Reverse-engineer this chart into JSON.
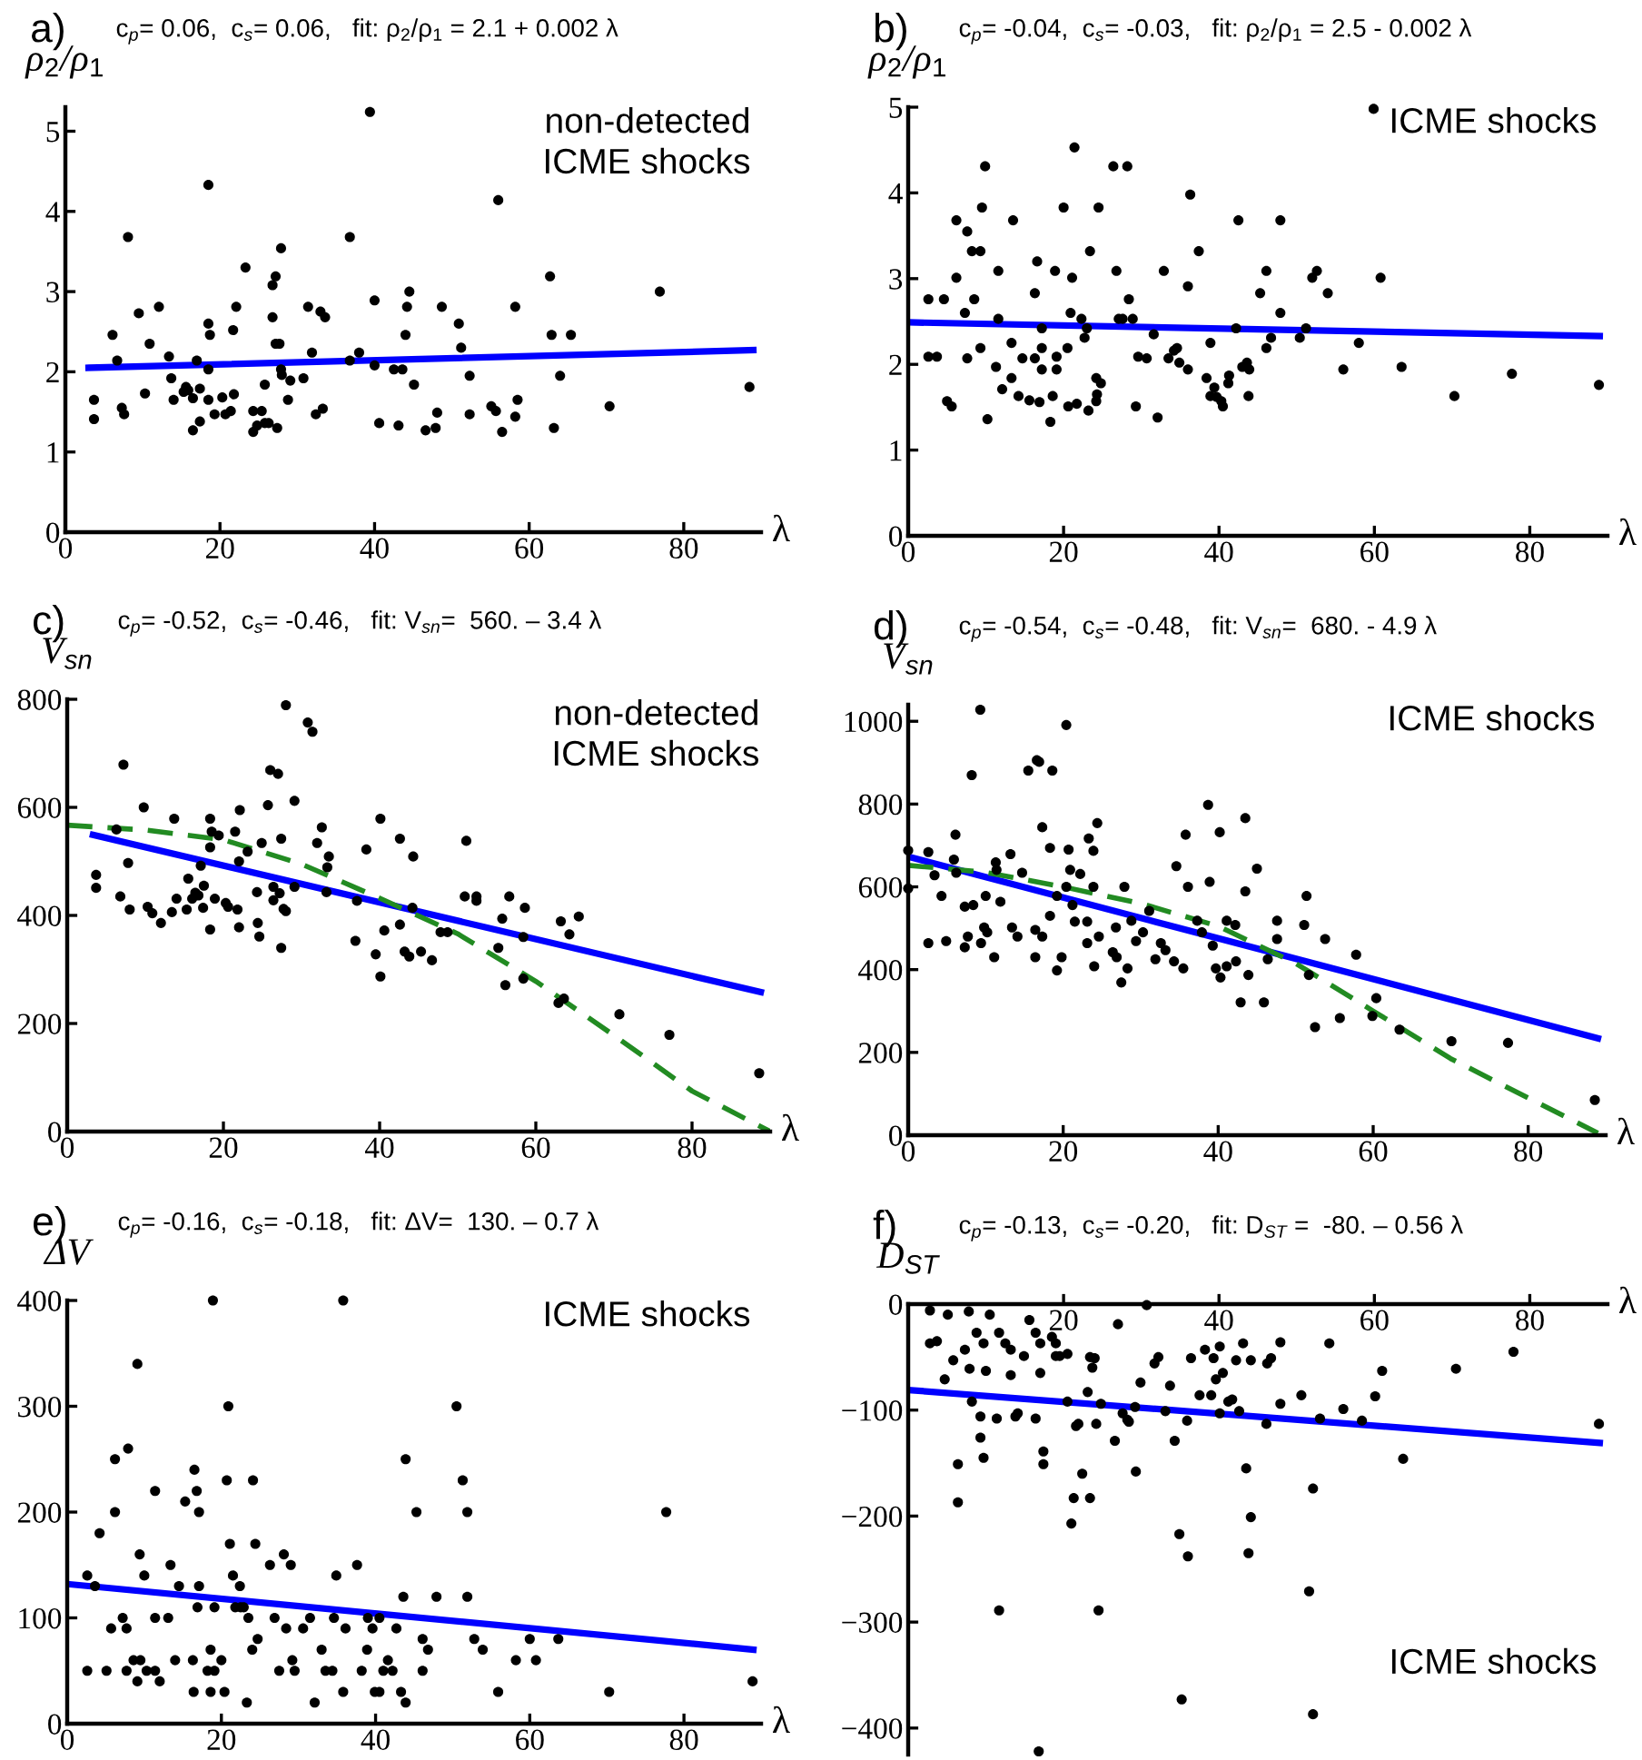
{
  "chart_data": [
    {
      "type": "scatter",
      "title": "a)",
      "subtitle": "c$_{p}$= 0.06,  c$_{s}$= 0.06,   fit: ρ$_{2}$/ρ$_{1}$ = 2.1 + 0.002 λ",
      "xlabel": "λ",
      "ylabel": "ρ$_{2}$/ρ$_{1}$",
      "xlim": [
        0,
        90
      ],
      "ylim": [
        0,
        5.3
      ],
      "xticks": [
        0,
        20,
        40,
        60,
        80
      ],
      "yticks": [
        0,
        1,
        2,
        3,
        4,
        5
      ],
      "annotations": [
        "non-detected\nICME shocks"
      ],
      "series": [
        {
          "color": "#000000",
          "marker": "circle",
          "x": [
            3.7,
            3.7,
            6.1,
            6.7,
            8.1,
            7.3,
            7.6,
            9.5,
            10.3,
            10.9,
            12.1,
            13.4,
            13.7,
            14,
            15.3,
            15.6,
            15.9,
            16.5,
            17,
            16.5,
            17.4,
            17.4,
            18.5,
            18.5,
            18.7,
            18.5,
            18.5,
            19.3,
            20.3,
            20.7,
            21.4,
            21.7,
            22.1,
            21.8,
            23.3,
            24.3,
            24.3,
            24.8,
            25.4,
            25.8,
            25.8,
            26.3,
            26.8,
            27.2,
            26.8,
            27.2,
            27.7,
            27.4,
            27.9,
            27.9,
            28,
            28.8,
            29.1,
            30.8,
            31.4,
            31.9,
            32.4,
            33,
            33.6,
            33.3,
            36.8,
            36.8,
            38,
            39.4,
            40,
            40,
            40.6,
            42.5,
            43.6,
            43.1,
            44,
            44.2,
            44.5,
            45.1,
            46.6,
            47.9,
            48.1,
            48.7,
            50.9,
            51.2,
            52.3,
            52.3,
            55.1,
            55.7,
            56,
            56.5,
            58.2,
            58.2,
            58.5,
            62.7,
            62.9,
            63.2,
            64,
            65.4,
            70.4,
            76.9,
            88.5
          ],
          "values": [
            1.65,
            1.41,
            2.46,
            2.14,
            3.68,
            1.55,
            1.47,
            2.73,
            1.73,
            2.35,
            2.81,
            2.19,
            1.92,
            1.65,
            1.75,
            1.81,
            1.77,
            1.67,
            2.14,
            1.27,
            1.38,
            1.79,
            4.33,
            2.6,
            2.46,
            2.03,
            1.65,
            1.47,
            1.68,
            1.47,
            1.51,
            2.52,
            2.81,
            1.72,
            3.3,
            1.51,
            1.25,
            1.33,
            1.51,
            1.84,
            1.36,
            1.36,
            3.08,
            3.19,
            2.68,
            2.35,
            2.35,
            1.3,
            3.54,
            2.03,
            1.96,
            1.65,
            1.89,
            1.92,
            2.81,
            2.24,
            1.47,
            2.75,
            2.68,
            1.54,
            3.68,
            2.14,
            2.24,
            5.24,
            2.89,
            2.08,
            1.36,
            2.03,
            2.03,
            1.33,
            2.46,
            2.81,
            3.0,
            1.84,
            1.27,
            1.3,
            1.49,
            2.81,
            2.6,
            2.3,
            1.95,
            1.47,
            1.57,
            1.51,
            4.14,
            1.25,
            2.81,
            1.44,
            1.65,
            3.19,
            2.46,
            1.3,
            1.95,
            2.46,
            1.57,
            3.0,
            1.81
          ]
        },
        {
          "type": "line",
          "color": "#0000ff",
          "x": [
            3,
            89
          ],
          "values": [
            2.05,
            2.27
          ]
        }
      ]
    },
    {
      "type": "scatter",
      "title": "b)",
      "subtitle": "c$_{p}$= -0.04,  c$_{s}$= -0.03,   fit: ρ$_{2}$/ρ$_{1}$ = 2.5 - 0.002 λ",
      "xlabel": "λ",
      "ylabel": "ρ$_{2}$/ρ$_{1}$",
      "xlim": [
        0,
        90
      ],
      "ylim": [
        0,
        5
      ],
      "xticks": [
        0,
        20,
        40,
        60,
        80
      ],
      "yticks": [
        0,
        1,
        2,
        3,
        4,
        5
      ],
      "annotations": [
        "ICME shocks"
      ],
      "series": [
        {
          "color": "#000000",
          "marker": "circle",
          "x": [
            2.6,
            2.6,
            3.7,
            4.6,
            5,
            5.6,
            6.2,
            6.2,
            7.3,
            7.6,
            7.6,
            8.2,
            8.5,
            9.3,
            9.5,
            9.3,
            9.9,
            10.2,
            11.3,
            11.6,
            11.6,
            12.1,
            13.3,
            13.3,
            13.5,
            14.2,
            14.7,
            15.6,
            16.3,
            16.6,
            16.3,
            16.9,
            17.2,
            17.2,
            17.2,
            18.3,
            18.6,
            18.9,
            19.1,
            19.1,
            20,
            20.5,
            20.6,
            20.9,
            21.1,
            21.4,
            21.7,
            22.3,
            22.7,
            23,
            23.2,
            23.4,
            24.2,
            24.2,
            24.3,
            24.5,
            24.8,
            26.4,
            26.8,
            27.1,
            27.6,
            28.2,
            28.4,
            28.9,
            29.3,
            29.6,
            30.7,
            31.6,
            32.1,
            32.9,
            33.5,
            34.2,
            34.6,
            34.9,
            36,
            36,
            36.3,
            37.4,
            38.4,
            38.9,
            38.9,
            39.4,
            39.7,
            40.3,
            40.5,
            41.2,
            41.3,
            42.2,
            42.5,
            43,
            43.6,
            43.8,
            43.9,
            45.3,
            46.1,
            46.1,
            46.7,
            47.9,
            47.9,
            50.4,
            51.2,
            52,
            52.6,
            54,
            56,
            58,
            59.9,
            60.8,
            63.5,
            70.3,
            77.7,
            88.9
          ],
          "values": [
            2.76,
            2.09,
            2.09,
            2.76,
            1.57,
            1.51,
            3.68,
            3.01,
            2.6,
            3.55,
            2.07,
            3.32,
            2.76,
            3.32,
            3.83,
            2.19,
            4.31,
            1.36,
            1.97,
            3.09,
            2.53,
            1.71,
            2.25,
            1.84,
            3.68,
            1.63,
            2.07,
            1.58,
            2.83,
            3.2,
            2.07,
            1.56,
            2.19,
            2.42,
            1.94,
            1.33,
            1.63,
            3.09,
            2.09,
            1.94,
            3.83,
            2.19,
            1.51,
            2.6,
            3.01,
            4.53,
            1.54,
            2.53,
            2.31,
            2.42,
            1.46,
            3.32,
            1.84,
            1.57,
            1.65,
            3.83,
            1.78,
            4.31,
            3.09,
            2.53,
            2.53,
            4.31,
            2.76,
            2.53,
            1.51,
            2.09,
            2.07,
            2.35,
            1.38,
            3.09,
            2.07,
            2.16,
            2.19,
            2.02,
            1.94,
            2.91,
            3.98,
            3.32,
            1.84,
            2.25,
            1.63,
            1.73,
            1.62,
            1.57,
            1.51,
            1.78,
            1.87,
            2.42,
            3.68,
            1.97,
            2.02,
            1.63,
            1.94,
            2.83,
            2.19,
            3.09,
            2.31,
            2.6,
            3.68,
            2.31,
            2.42,
            3.01,
            3.09,
            2.83,
            1.94,
            2.25,
            4.98,
            3.01,
            1.97,
            1.63,
            1.89,
            1.76
          ]
        },
        {
          "type": "line",
          "color": "#0000ff",
          "x": [
            0,
            89
          ],
          "values": [
            2.49,
            2.33
          ]
        }
      ]
    },
    {
      "type": "scatter",
      "title": "c)",
      "subtitle": "c$_{p}$= -0.52,  c$_{s}$= -0.46,   fit: V$_{sn}$=  560. – 3.4 λ",
      "xlabel": "λ",
      "ylabel": "V$_{sn}$",
      "xlim": [
        0,
        90
      ],
      "ylim": [
        0,
        800
      ],
      "xticks": [
        0,
        20,
        40,
        60,
        80
      ],
      "yticks": [
        0,
        200,
        400,
        600,
        800
      ],
      "annotations": [
        "non-detected\nICME shocks"
      ],
      "series": [
        {
          "color": "#000000",
          "marker": "circle",
          "x": [
            3.7,
            3.7,
            6.3,
            7.2,
            6.8,
            7.8,
            8,
            9.8,
            10.3,
            10.9,
            12,
            13.7,
            13.4,
            14,
            15.3,
            15.5,
            16,
            16.4,
            16.8,
            17.1,
            17.5,
            17.4,
            18.3,
            18.3,
            18.3,
            18.5,
            18.9,
            19.4,
            20.3,
            20.6,
            21.5,
            21.8,
            22,
            22.1,
            22,
            23.1,
            24.3,
            24.4,
            24.6,
            24.9,
            25.7,
            26,
            26.4,
            27,
            26.4,
            27.2,
            27.4,
            27.4,
            27.7,
            28,
            28,
            29.1,
            29.1,
            30.8,
            31.4,
            32,
            32.6,
            33.2,
            33.3,
            33.5,
            36.9,
            38.3,
            37.1,
            39.5,
            40.1,
            40.1,
            40.6,
            42.6,
            42.6,
            43.2,
            43.8,
            44.3,
            44.2,
            45.3,
            46.7,
            47.8,
            48.7,
            51.1,
            50.9,
            52.4,
            52.4,
            55.2,
            55.7,
            56.1,
            56.6,
            58.4,
            58.6,
            58.4,
            62.9,
            63.6,
            63.2,
            64.3,
            65.5,
            70.7,
            77.1,
            88.6
          ],
          "values": [
            475,
            451,
            559,
            679,
            435,
            497,
            411,
            600,
            416,
            404,
            386,
            579,
            406,
            431,
            411,
            468,
            431,
            442,
            437,
            492,
            455,
            414,
            579,
            526,
            374,
            555,
            431,
            548,
            423,
            416,
            555,
            411,
            378,
            595,
            500,
            518,
            443,
            386,
            361,
            534,
            604,
            669,
            453,
            662,
            428,
            441,
            542,
            340,
            412,
            408,
            789,
            612,
            453,
            757,
            740,
            534,
            563,
            443,
            489,
            509,
            353,
            522,
            427,
            328,
            579,
            287,
            372,
            542,
            383,
            333,
            324,
            509,
            414,
            333,
            317,
            369,
            369,
            538,
            435,
            435,
            427,
            340,
            394,
            271,
            435,
            283,
            414,
            360,
            238,
            246,
            389,
            365,
            398,
            217,
            179,
            108
          ]
        },
        {
          "type": "line",
          "color": "#0000ff",
          "x": [
            3.3,
            88.8
          ],
          "values": [
            549,
            258
          ]
        },
        {
          "type": "line",
          "color": "#228b22",
          "line_style": "dashed",
          "x": [
            0,
            10,
            20,
            30,
            40,
            50,
            60,
            70,
            80,
            90
          ],
          "values": [
            567,
            558,
            540,
            495,
            432,
            366,
            278,
            178,
            75,
            0
          ]
        }
      ]
    },
    {
      "type": "scatter",
      "title": "d)",
      "subtitle": "c$_{p}$= -0.54,  c$_{s}$= -0.48,   fit: V$_{sn}$=  680. - 4.9 λ",
      "xlabel": "λ",
      "ylabel": "V$_{sn}$",
      "xlim": [
        0,
        90
      ],
      "ylim": [
        0,
        1040
      ],
      "xticks": [
        0,
        20,
        40,
        60,
        80
      ],
      "yticks": [
        0,
        200,
        400,
        600,
        800,
        1000
      ],
      "annotations": [
        "ICME shocks"
      ],
      "series": [
        {
          "color": "#000000",
          "marker": "circle",
          "x": [
            0,
            0,
            2.6,
            2.6,
            3.4,
            4.3,
            4.9,
            5.9,
            6.1,
            6.2,
            7.3,
            7.3,
            7.7,
            8.2,
            8.4,
            9.3,
            9.4,
            9.8,
            10,
            10.2,
            11.1,
            11.3,
            11.4,
            11.9,
            13.2,
            13.4,
            14.1,
            14.7,
            15.5,
            16.4,
            16.4,
            16.6,
            16.9,
            17.3,
            17.3,
            18.3,
            18.3,
            18.6,
            19.2,
            19.2,
            19.8,
            20.4,
            20.7,
            20.4,
            20.9,
            21.2,
            21.5,
            22.2,
            23.1,
            23.1,
            23.3,
            23.9,
            23.9,
            24,
            24.4,
            24.6,
            26.4,
            26.8,
            26.9,
            27.5,
            27.9,
            28.3,
            28.8,
            29.4,
            30.3,
            31.1,
            31.9,
            32.6,
            33.2,
            34.3,
            34.6,
            35.5,
            35.8,
            36.1,
            37.3,
            37.9,
            38.7,
            38.9,
            39.3,
            39.7,
            40.2,
            40.3,
            41.1,
            41.1,
            42.2,
            42.3,
            42.9,
            43.5,
            43.5,
            43.9,
            45,
            45.9,
            46.4,
            47.6,
            47.6,
            51.4,
            51.1,
            51.7,
            52.5,
            53.8,
            55.7,
            57.8,
            59.9,
            60.4,
            63.4,
            70.1,
            77.4,
            88.6
          ],
          "values": [
            688,
            596,
            684,
            464,
            628,
            578,
            469,
            666,
            726,
            634,
            552,
            454,
            480,
            870,
            556,
            1028,
            464,
            502,
            578,
            490,
            430,
            659,
            641,
            564,
            679,
            502,
            480,
            634,
            881,
            496,
            430,
            906,
            902,
            744,
            480,
            694,
            530,
            881,
            578,
            398,
            430,
            991,
            690,
            600,
            641,
            556,
            516,
            631,
            516,
            464,
            717,
            687,
            600,
            408,
            754,
            480,
            442,
            502,
            430,
            369,
            600,
            403,
            518,
            469,
            490,
            542,
            425,
            464,
            447,
            420,
            650,
            403,
            726,
            600,
            518,
            490,
            798,
            612,
            458,
            403,
            732,
            381,
            408,
            518,
            508,
            420,
            321,
            766,
            589,
            387,
            644,
            321,
            425,
            518,
            474,
            578,
            508,
            387,
            261,
            474,
            283,
            436,
            288,
            331,
            255,
            227,
            223,
            85
          ]
        },
        {
          "type": "line",
          "color": "#0000ff",
          "x": [
            0,
            89
          ],
          "values": [
            673,
            234
          ]
        },
        {
          "type": "line",
          "color": "#228b22",
          "line_style": "dashed",
          "x": [
            0,
            10,
            20,
            30,
            40,
            50,
            60,
            70,
            80,
            89
          ],
          "values": [
            652,
            635,
            600,
            560,
            505,
            415,
            300,
            185,
            90,
            5
          ]
        }
      ]
    },
    {
      "type": "scatter",
      "title": "e)",
      "subtitle": "c$_{p}$= -0.16,  c$_{s}$= -0.18,   fit: ΔV=  130. – 0.7 λ",
      "xlabel": "λ",
      "ylabel": "ΔV",
      "xlim": [
        0,
        90
      ],
      "ylim": [
        0,
        400
      ],
      "xticks": [
        0,
        20,
        40,
        60,
        80
      ],
      "yticks": [
        0,
        100,
        200,
        300,
        400
      ],
      "annotations": [
        "ICME shocks"
      ],
      "series": [
        {
          "color": "#000000",
          "marker": "circle",
          "x": [
            2.6,
            2.6,
            3.6,
            4.2,
            5.1,
            5.7,
            6.2,
            6.2,
            7.2,
            7.7,
            7.9,
            7.7,
            8.6,
            9.1,
            9.1,
            9.4,
            9.5,
            10,
            10.3,
            11.4,
            11.4,
            11.4,
            12,
            13.1,
            13.4,
            14,
            14.5,
            15.3,
            16.3,
            16.4,
            16.5,
            16.8,
            16.9,
            17.1,
            17.1,
            18.2,
            18.6,
            18.6,
            18.9,
            19.1,
            19.1,
            20,
            20.4,
            20.7,
            20.9,
            21.1,
            21.5,
            21.8,
            22.4,
            22.5,
            22.9,
            23.3,
            23.5,
            24.1,
            24,
            24.4,
            24.7,
            26.3,
            26.9,
            27.5,
            28.1,
            28.4,
            29,
            29.2,
            29.5,
            30.6,
            31.5,
            32.1,
            33,
            33.5,
            34.4,
            34.6,
            34.9,
            35.8,
            35.8,
            36.1,
            37.6,
            38.2,
            38.9,
            39,
            39.6,
            39.9,
            40.5,
            40.5,
            41,
            41.6,
            42.2,
            42.7,
            43.3,
            43.6,
            43.9,
            43.9,
            45.3,
            46.1,
            46.1,
            46.8,
            47.9,
            50.5,
            51.3,
            51.9,
            51.9,
            52.8,
            53.9,
            55.9,
            58.2,
            60,
            60.8,
            63.7,
            70.3,
            77.7,
            88.9
          ],
          "values": [
            140,
            50,
            130,
            180,
            50,
            90,
            250,
            200,
            100,
            90,
            260,
            50,
            60,
            340,
            40,
            160,
            60,
            140,
            50,
            50,
            220,
            100,
            40,
            100,
            150,
            60,
            130,
            210,
            60,
            30,
            240,
            220,
            110,
            200,
            130,
            50,
            70,
            30,
            400,
            110,
            50,
            60,
            30,
            230,
            300,
            170,
            140,
            110,
            130,
            110,
            110,
            20,
            100,
            230,
            70,
            170,
            80,
            150,
            100,
            50,
            160,
            90,
            150,
            60,
            50,
            90,
            100,
            20,
            70,
            50,
            50,
            100,
            140,
            400,
            30,
            90,
            150,
            50,
            70,
            100,
            90,
            30,
            30,
            100,
            50,
            60,
            50,
            90,
            30,
            120,
            20,
            250,
            200,
            80,
            50,
            70,
            120,
            300,
            230,
            200,
            120,
            80,
            70,
            30,
            60,
            80,
            60,
            80,
            30,
            200,
            40
          ]
        },
        {
          "type": "line",
          "color": "#0000ff",
          "x": [
            0,
            89
          ],
          "values": [
            132,
            70
          ]
        }
      ]
    },
    {
      "type": "scatter",
      "title": "f)",
      "subtitle": "c$_{p}$= -0.13,  c$_{s}$= -0.20,   fit: D$_{ST}$ =  -80. – 0.56 λ",
      "xlabel": "λ",
      "ylabel": "D$_{ST}$",
      "xlim": [
        0,
        90
      ],
      "ylim": [
        -425,
        0
      ],
      "xticks": [
        20,
        40,
        60,
        80
      ],
      "yticks": [
        {
          "value": -400,
          "label": "−400"
        },
        {
          "value": -300,
          "label": "−300"
        },
        {
          "value": -200,
          "label": "−200"
        },
        {
          "value": -100,
          "label": "−100"
        },
        0
      ],
      "annotations": [
        "ICME shocks"
      ],
      "series": [
        {
          "color": "#000000",
          "marker": "circle",
          "x": [
            2.8,
            2.8,
            3.7,
            4.7,
            5.1,
            5.8,
            6.4,
            6.4,
            7.3,
            7.8,
            7.9,
            8.2,
            8.8,
            9.3,
            9.3,
            9.7,
            9.7,
            10,
            10.5,
            11.4,
            11.7,
            11.7,
            12.5,
            13.2,
            13.2,
            13.8,
            14.1,
            14.9,
            15.6,
            16.4,
            16.4,
            17,
            17,
            17.4,
            17.4,
            16.8,
            18.5,
            19,
            19,
            19.5,
            20.5,
            20.5,
            21,
            21.3,
            21.6,
            21.9,
            22.4,
            23.1,
            23.4,
            23.4,
            23.7,
            24,
            24.2,
            24.5,
            24.8,
            27,
            26.6,
            27.6,
            28.2,
            28.4,
            29.2,
            29.3,
            29.9,
            30.7,
            31.7,
            32.2,
            33.1,
            33.7,
            34.3,
            34.9,
            35.2,
            35.9,
            36,
            36.4,
            37.5,
            38.2,
            39,
            39.3,
            39.6,
            40.1,
            40.1,
            40.5,
            41.2,
            41.7,
            42.2,
            42.6,
            43.1,
            43.5,
            43.8,
            44.1,
            44.1,
            46.1,
            46.2,
            46.7,
            47.9,
            47.9,
            50.6,
            51.6,
            52.1,
            52.1,
            53,
            54.2,
            56,
            58.4,
            60.1,
            61,
            63.7,
            70.5,
            77.9,
            88.9
          ],
          "values": [
            -6,
            -37,
            -35,
            -71,
            -10,
            -53,
            -151,
            -187,
            -43,
            -7,
            -61,
            -92,
            -27,
            -106,
            -126,
            -37,
            -145,
            -63,
            -10,
            -108,
            -27,
            -289,
            -37,
            -43,
            -67,
            -106,
            -103,
            -49,
            -15,
            -27,
            -108,
            -65,
            -37,
            -139,
            -151,
            -422,
            -31,
            -37,
            -49,
            -49,
            -47,
            -92,
            -207,
            -183,
            -115,
            -113,
            -160,
            -83,
            -50,
            -183,
            -60,
            -51,
            -113,
            -289,
            -94,
            -19,
            -129,
            -103,
            -109,
            -111,
            -97,
            -158,
            -74,
            -1,
            -56,
            -50,
            -101,
            -77,
            -129,
            -217,
            -373,
            -110,
            -238,
            -51,
            -86,
            -43,
            -86,
            -51,
            -71,
            -40,
            -103,
            -65,
            -92,
            -90,
            -53,
            -101,
            -37,
            -155,
            -235,
            -201,
            -53,
            -113,
            -56,
            -51,
            -36,
            -94,
            -86,
            -271,
            -174,
            -387,
            -108,
            -37,
            -99,
            -110,
            -87,
            -63,
            -146,
            -61,
            -45,
            -113
          ]
        },
        {
          "type": "line",
          "color": "#0000ff",
          "x": [
            0,
            89
          ],
          "values": [
            -81,
            -131
          ]
        }
      ]
    }
  ]
}
